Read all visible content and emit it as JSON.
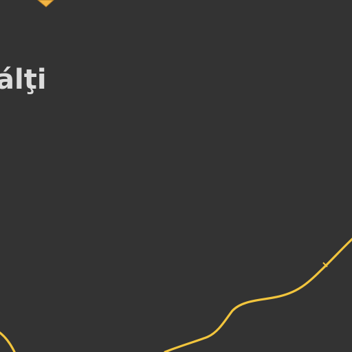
{
  "map": {
    "colors": {
      "background": "#333333",
      "road": "#f2c53d",
      "road_casing": "#e0a020",
      "marker": "#f2b544",
      "label": "#dcdcdc"
    },
    "labels": [
      {
        "text": "álţi",
        "kind": "city"
      }
    ],
    "roads": [
      {
        "name": "primary-road",
        "type": "primary"
      },
      {
        "name": "secondary-road",
        "type": "secondary"
      }
    ],
    "markers": [
      {
        "name": "poi-marker",
        "icon": "location-pin-icon"
      }
    ]
  }
}
